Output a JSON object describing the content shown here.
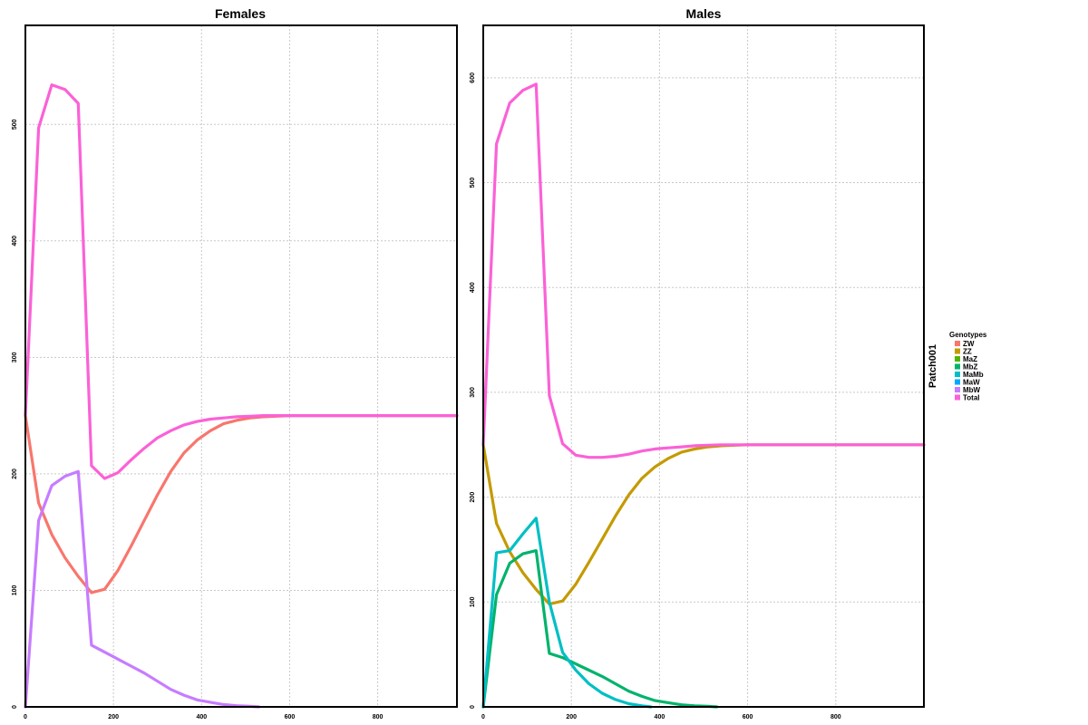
{
  "colors": {
    "ZW": "#F8766D",
    "ZZ": "#C49A00",
    "MaZ": "#53B400",
    "MbZ": "#00B36B",
    "MaMb": "#00BFC4",
    "MaW": "#00A9FF",
    "MbW": "#C77CFF",
    "Total": "#FB61D7"
  },
  "legend": {
    "title": "Genotypes",
    "items": [
      {
        "key": "ZW",
        "label": "ZW"
      },
      {
        "key": "ZZ",
        "label": "ZZ"
      },
      {
        "key": "MaZ",
        "label": "MaZ"
      },
      {
        "key": "MbZ",
        "label": "MbZ"
      },
      {
        "key": "MaMb",
        "label": "MaMb"
      },
      {
        "key": "MaW",
        "label": "MaW"
      },
      {
        "key": "MbW",
        "label": "MbW"
      },
      {
        "key": "Total",
        "label": "Total"
      }
    ]
  },
  "strip_label": "Patch001",
  "chart_data": [
    {
      "type": "line",
      "title": "Females",
      "xlabel": "",
      "ylabel": "",
      "xlim": [
        0,
        980
      ],
      "ylim": [
        0,
        585
      ],
      "xticks": [
        0,
        200,
        400,
        600,
        800
      ],
      "yticks": [
        0,
        100,
        200,
        300,
        400,
        500
      ],
      "grid": true,
      "series": [
        {
          "name": "ZW",
          "color_key": "ZW",
          "x": [
            0,
            30,
            60,
            90,
            120,
            150,
            180,
            210,
            240,
            270,
            300,
            330,
            360,
            390,
            420,
            450,
            480,
            510,
            540,
            570,
            600,
            650,
            700,
            800,
            900,
            980
          ],
          "y": [
            250,
            175,
            148,
            128,
            112,
            98,
            101,
            117,
            138,
            160,
            182,
            202,
            218,
            229,
            237,
            243,
            246,
            248,
            249,
            249.5,
            250,
            250,
            250,
            250,
            250,
            250
          ]
        },
        {
          "name": "MbW",
          "color_key": "MbW",
          "x": [
            0,
            30,
            60,
            90,
            120,
            150,
            180,
            210,
            240,
            270,
            300,
            330,
            360,
            390,
            420,
            450,
            480,
            510,
            530
          ],
          "y": [
            0,
            160,
            190,
            198,
            202,
            53,
            47,
            41,
            35,
            29,
            22,
            15,
            10,
            6,
            4,
            2,
            1,
            0.5,
            0
          ]
        },
        {
          "name": "Total",
          "color_key": "Total",
          "x": [
            0,
            30,
            60,
            90,
            120,
            150,
            180,
            210,
            240,
            270,
            300,
            330,
            360,
            390,
            420,
            450,
            480,
            510,
            540,
            570,
            600,
            650,
            700,
            800,
            900,
            980
          ],
          "y": [
            250,
            497,
            534,
            530,
            518,
            207,
            196,
            201,
            212,
            222,
            231,
            237,
            242,
            245,
            247,
            248,
            249,
            249.5,
            250,
            250,
            250,
            250,
            250,
            250,
            250,
            250
          ]
        }
      ]
    },
    {
      "type": "line",
      "title": "Males",
      "xlabel": "",
      "ylabel": "",
      "xlim": [
        0,
        1000
      ],
      "ylim": [
        0,
        650
      ],
      "xticks": [
        0,
        200,
        400,
        600,
        800
      ],
      "yticks": [
        0,
        100,
        200,
        300,
        400,
        500,
        600
      ],
      "grid": true,
      "series": [
        {
          "name": "ZZ",
          "color_key": "ZZ",
          "x": [
            0,
            30,
            60,
            90,
            120,
            150,
            180,
            210,
            240,
            270,
            300,
            330,
            360,
            390,
            420,
            450,
            480,
            510,
            540,
            570,
            600,
            650,
            700,
            800,
            900,
            1000
          ],
          "y": [
            250,
            175,
            148,
            128,
            112,
            98,
            101,
            117,
            138,
            160,
            182,
            202,
            218,
            229,
            237,
            243,
            246,
            248,
            249,
            249.5,
            250,
            250,
            250,
            250,
            250,
            250
          ]
        },
        {
          "name": "MbZ",
          "color_key": "MbZ",
          "x": [
            0,
            30,
            60,
            90,
            120,
            150,
            180,
            210,
            240,
            270,
            300,
            330,
            360,
            390,
            420,
            450,
            480,
            510,
            530
          ],
          "y": [
            0,
            107,
            137,
            146,
            149,
            51,
            47,
            41,
            35,
            29,
            22,
            15,
            10,
            6,
            4,
            2,
            1,
            0.5,
            0
          ]
        },
        {
          "name": "MaMb",
          "color_key": "MaMb",
          "x": [
            0,
            30,
            60,
            90,
            120,
            150,
            180,
            210,
            240,
            270,
            300,
            330,
            360,
            380
          ],
          "y": [
            0,
            147,
            149,
            165,
            180,
            100,
            52,
            35,
            22,
            13,
            7,
            3,
            1,
            0
          ]
        },
        {
          "name": "Total",
          "color_key": "Total",
          "x": [
            0,
            30,
            60,
            90,
            120,
            150,
            180,
            210,
            240,
            270,
            300,
            330,
            360,
            390,
            420,
            450,
            480,
            510,
            540,
            570,
            600,
            650,
            700,
            800,
            900,
            1000
          ],
          "y": [
            250,
            537,
            576,
            588,
            594,
            297,
            251,
            240,
            238,
            238,
            239,
            241,
            244,
            246,
            247,
            248,
            249,
            249.5,
            250,
            250,
            250,
            250,
            250,
            250,
            250,
            250
          ]
        }
      ]
    }
  ]
}
